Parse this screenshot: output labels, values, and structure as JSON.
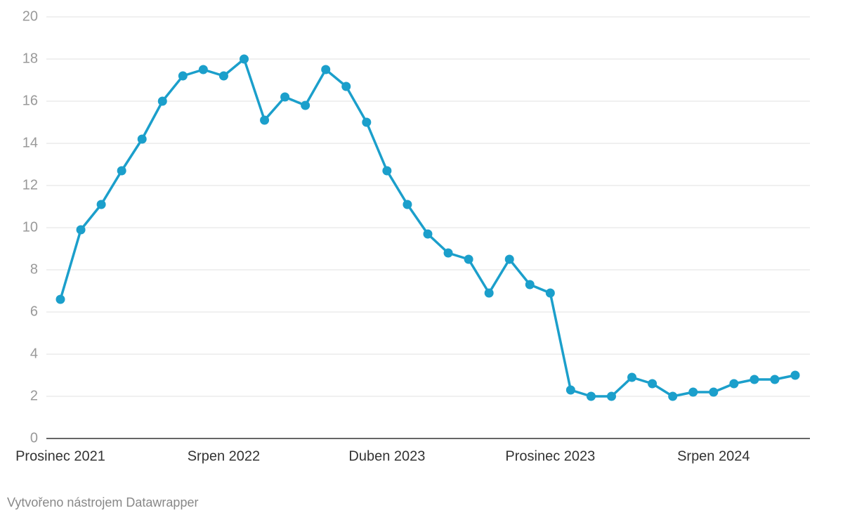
{
  "chart_data": {
    "type": "line",
    "categories": [
      "Prosinec 2021",
      null,
      null,
      null,
      null,
      null,
      null,
      null,
      "Srpen 2022",
      null,
      null,
      null,
      null,
      null,
      null,
      null,
      "Duben 2023",
      null,
      null,
      null,
      null,
      null,
      null,
      null,
      "Prosinec 2023",
      null,
      null,
      null,
      null,
      null,
      null,
      null,
      "Srpen 2024",
      null,
      null,
      null,
      null
    ],
    "series": [
      {
        "color": "#1b9fcb",
        "values": [
          6.6,
          9.9,
          11.1,
          12.7,
          14.2,
          16.0,
          17.2,
          17.5,
          17.2,
          18.0,
          15.1,
          16.2,
          15.8,
          17.5,
          16.7,
          15.0,
          12.7,
          11.1,
          9.7,
          8.8,
          8.5,
          6.9,
          8.5,
          7.3,
          6.9,
          2.3,
          2.0,
          2.0,
          2.9,
          2.6,
          2.0,
          2.2,
          2.2,
          2.6,
          2.8,
          2.8,
          3.0
        ]
      }
    ],
    "ylim": [
      0,
      20
    ],
    "yticks": [
      0,
      2,
      4,
      6,
      8,
      10,
      12,
      14,
      16,
      18,
      20
    ],
    "grid": true,
    "footer": "Vytvořeno nástrojem Datawrapper"
  }
}
